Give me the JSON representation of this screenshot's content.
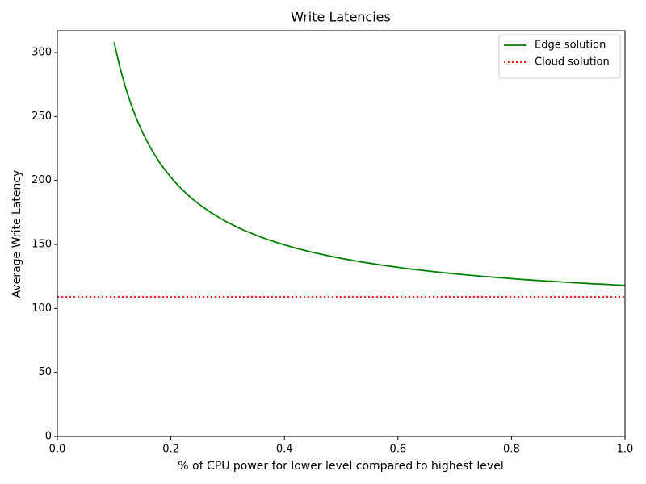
{
  "chart_data": {
    "type": "line",
    "title": "Write Latencies",
    "x_label": "% of CPU power for lower level compared to highest level",
    "y_label": "Average Write Latency",
    "xlim": [
      0,
      1
    ],
    "ylim": [
      0,
      317
    ],
    "xticks": [
      {
        "value": 0,
        "label": "0.0"
      },
      0.2,
      0.4,
      0.6,
      0.8,
      {
        "value": 1,
        "label": "1.0"
      }
    ],
    "yticks": [
      0,
      50,
      100,
      150,
      200,
      250,
      300
    ],
    "legend": "upper right",
    "series": [
      {
        "name": "Edge solution",
        "color": "#008000",
        "style": "solid",
        "x": [
          0.1,
          0.11,
          0.12,
          0.13,
          0.14,
          0.15,
          0.16,
          0.17,
          0.18,
          0.19,
          0.2,
          0.21,
          0.22,
          0.23,
          0.24,
          0.25,
          0.26,
          0.27,
          0.28,
          0.29,
          0.3,
          0.31,
          0.32,
          0.33,
          0.34,
          0.35,
          0.36,
          0.37,
          0.38,
          0.39,
          0.4,
          0.41,
          0.42,
          0.43,
          0.44,
          0.45,
          0.46,
          0.47,
          0.48,
          0.49,
          0.5,
          0.51,
          0.52,
          0.53,
          0.54,
          0.55,
          0.56,
          0.57,
          0.58,
          0.59,
          0.6,
          0.61,
          0.62,
          0.63,
          0.64,
          0.65,
          0.66,
          0.67,
          0.68,
          0.69,
          0.7,
          0.71,
          0.72,
          0.73,
          0.74,
          0.75,
          0.76,
          0.77,
          0.78,
          0.79,
          0.8,
          0.81,
          0.82,
          0.83,
          0.84,
          0.85,
          0.86,
          0.87,
          0.88,
          0.89,
          0.9,
          0.91,
          0.92,
          0.93,
          0.94,
          0.95,
          0.96,
          0.97,
          0.98,
          0.99,
          1.0
        ],
        "values": [
          308,
          288.7,
          272.7,
          259.2,
          247.6,
          237.6,
          228.8,
          221,
          214.1,
          208,
          202.4,
          197.4,
          192.8,
          188.6,
          184.8,
          181.3,
          178.1,
          175,
          172.3,
          169.7,
          167.2,
          165,
          162.8,
          160.8,
          159,
          157.2,
          155.5,
          153.9,
          152.4,
          151,
          149.7,
          148.4,
          147.1,
          146,
          144.9,
          143.8,
          142.8,
          141.8,
          140.9,
          140,
          139.1,
          138.3,
          137.5,
          136.7,
          136,
          135.3,
          134.6,
          133.9,
          133.3,
          132.7,
          132.1,
          131.5,
          130.9,
          130.4,
          129.9,
          129.4,
          128.9,
          128.4,
          127.9,
          127.5,
          127,
          126.6,
          126.2,
          125.8,
          125.4,
          125,
          124.7,
          124.3,
          124,
          123.6,
          123.3,
          122.9,
          122.6,
          122.3,
          122,
          121.7,
          121.4,
          121.2,
          120.9,
          120.6,
          120.3,
          120.1,
          119.8,
          119.6,
          119.3,
          119.1,
          118.9,
          118.7,
          118.4,
          118.2,
          118
        ]
      },
      {
        "name": "Cloud solution",
        "color": "#ff0000",
        "style": "dotted",
        "x": [
          0,
          1
        ],
        "values": [
          109,
          109
        ]
      }
    ]
  }
}
